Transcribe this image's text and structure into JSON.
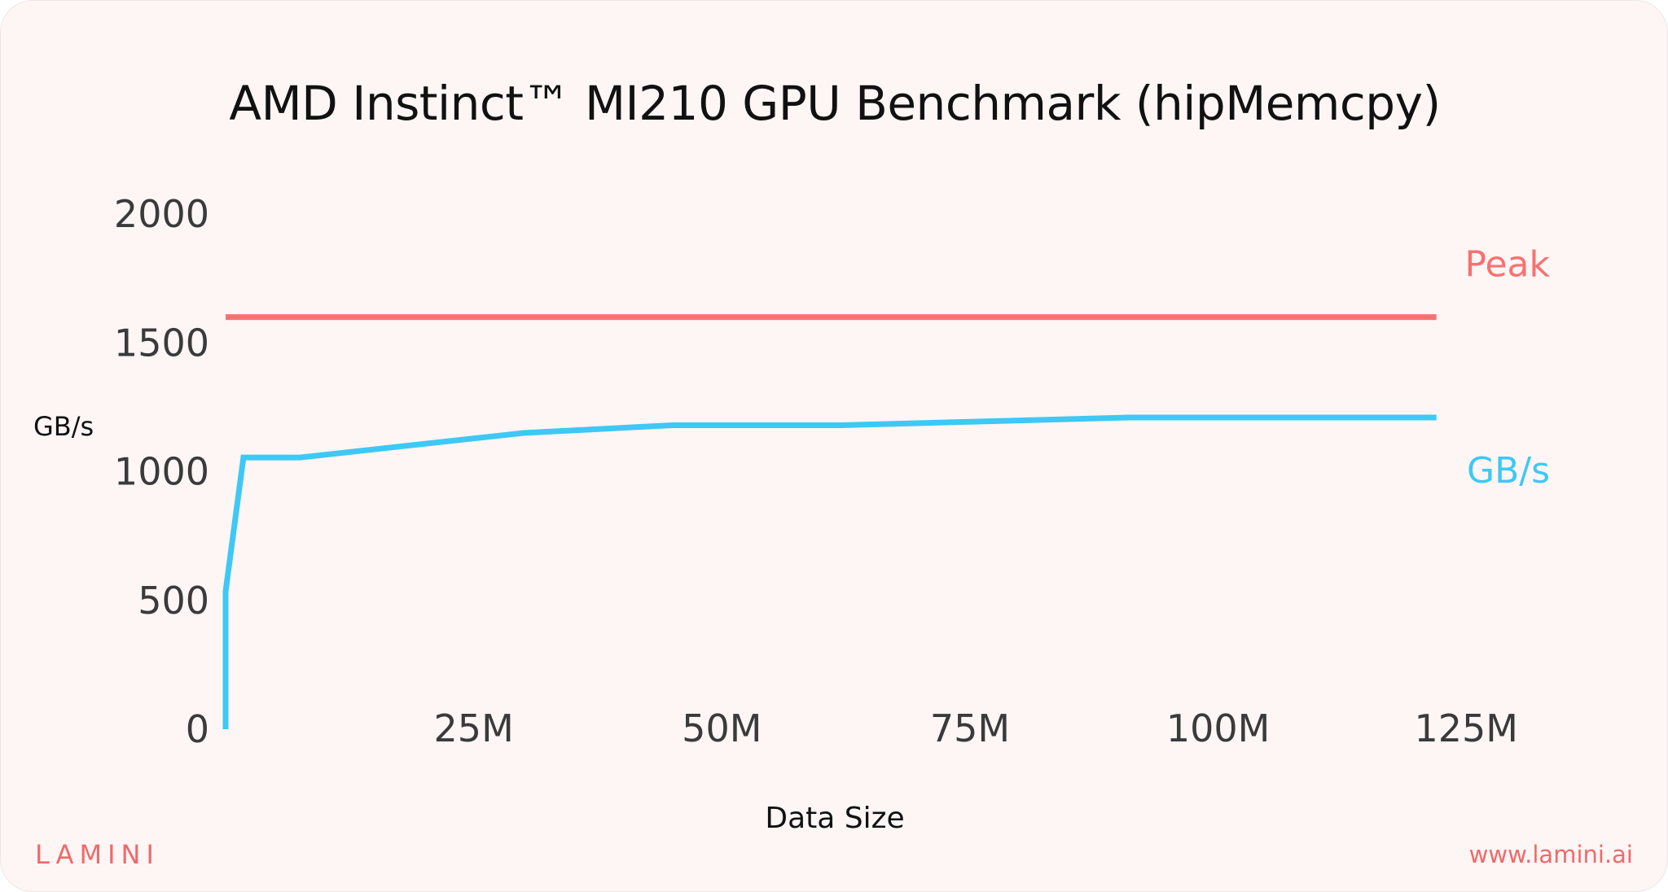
{
  "brand": "LAMINI",
  "url": "www.lamini.ai",
  "colors": {
    "peak": "#f87171",
    "measured": "#3ec8f5",
    "axis_text": "#3a3a3a",
    "brand": "#ef6a6a"
  },
  "chart_data": {
    "type": "line",
    "title": "AMD Instinct™ MI210 GPU Benchmark (hipMemcpy)",
    "xlabel": "Data Size",
    "ylabel": "GB/s",
    "xlim": [
      0,
      129
    ],
    "ylim": [
      0,
      2000
    ],
    "x_ticks": [
      0,
      25,
      50,
      75,
      100,
      125
    ],
    "x_tick_labels": [
      "",
      "25M",
      "50M",
      "75M",
      "100M",
      "125M"
    ],
    "y_ticks": [
      0,
      500,
      1000,
      1500,
      2000
    ],
    "y_tick_labels": [
      "0",
      "500",
      "1000",
      "1500",
      "2000"
    ],
    "grid": false,
    "series": [
      {
        "name": "Peak",
        "color": "#f87171",
        "x": [
          0,
          122
        ],
        "y": [
          1600,
          1600
        ]
      },
      {
        "name": "GB/s",
        "color": "#3ec8f5",
        "x": [
          0,
          0,
          1.8,
          7.5,
          30,
          45,
          62,
          91,
          122
        ],
        "y": [
          0,
          535,
          1055,
          1055,
          1150,
          1180,
          1180,
          1210,
          1210
        ]
      }
    ]
  }
}
